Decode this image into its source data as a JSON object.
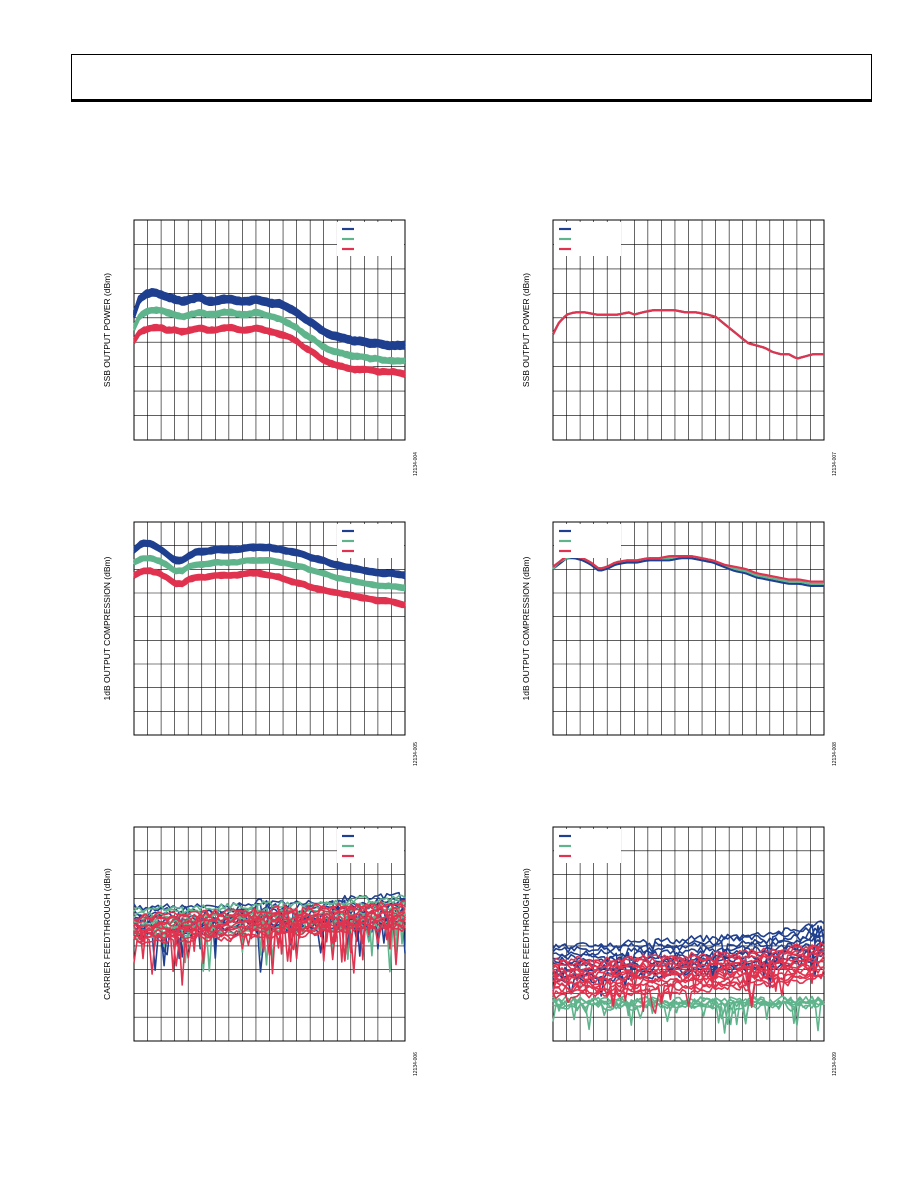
{
  "page": {
    "header_title": ""
  },
  "colors": {
    "blue": "#1f3f8f",
    "green": "#5fb48c",
    "red": "#e0334f",
    "grid": "#000000"
  },
  "chart_data": [
    {
      "id": "chart-1",
      "type": "line",
      "ylabel": "SSB OUTPUT POWER (dBm)",
      "figure_id": "12134-004",
      "grid": true,
      "legend": "top-right",
      "x": [
        0.0,
        0.02,
        0.04,
        0.06,
        0.08,
        0.1,
        0.12,
        0.15,
        0.18,
        0.21,
        0.24,
        0.27,
        0.3,
        0.33,
        0.36,
        0.39,
        0.42,
        0.45,
        0.48,
        0.51,
        0.54,
        0.57,
        0.6,
        0.63,
        0.66,
        0.69,
        0.72,
        0.75,
        0.78,
        0.81,
        0.84,
        0.87,
        0.9,
        0.93,
        0.96,
        1.0
      ],
      "series": [
        {
          "color": "blue",
          "band": 0.03,
          "n": 9,
          "values": [
            0.57,
            0.64,
            0.66,
            0.67,
            0.67,
            0.66,
            0.65,
            0.64,
            0.63,
            0.64,
            0.65,
            0.63,
            0.63,
            0.64,
            0.64,
            0.63,
            0.63,
            0.64,
            0.63,
            0.62,
            0.62,
            0.6,
            0.58,
            0.55,
            0.53,
            0.5,
            0.48,
            0.47,
            0.46,
            0.45,
            0.45,
            0.44,
            0.44,
            0.43,
            0.43,
            0.43
          ]
        },
        {
          "color": "green",
          "band": 0.022,
          "n": 7,
          "values": [
            0.51,
            0.56,
            0.58,
            0.59,
            0.59,
            0.59,
            0.58,
            0.57,
            0.56,
            0.57,
            0.58,
            0.57,
            0.57,
            0.58,
            0.58,
            0.57,
            0.57,
            0.58,
            0.57,
            0.56,
            0.55,
            0.53,
            0.51,
            0.48,
            0.46,
            0.43,
            0.41,
            0.4,
            0.39,
            0.38,
            0.38,
            0.37,
            0.37,
            0.36,
            0.36,
            0.36
          ]
        },
        {
          "color": "red",
          "band": 0.022,
          "n": 7,
          "values": [
            0.45,
            0.49,
            0.5,
            0.51,
            0.51,
            0.51,
            0.5,
            0.5,
            0.49,
            0.5,
            0.51,
            0.5,
            0.5,
            0.51,
            0.51,
            0.5,
            0.5,
            0.51,
            0.5,
            0.49,
            0.48,
            0.47,
            0.45,
            0.42,
            0.4,
            0.37,
            0.35,
            0.34,
            0.33,
            0.32,
            0.32,
            0.32,
            0.31,
            0.31,
            0.31,
            0.3
          ]
        }
      ]
    },
    {
      "id": "chart-2",
      "type": "line",
      "ylabel": "SSB OUTPUT POWER (dBm)",
      "figure_id": "12134-007",
      "grid": true,
      "legend": "top-left",
      "x": [
        0.0,
        0.02,
        0.05,
        0.08,
        0.12,
        0.16,
        0.2,
        0.24,
        0.28,
        0.3,
        0.33,
        0.37,
        0.41,
        0.45,
        0.49,
        0.53,
        0.57,
        0.6,
        0.63,
        0.66,
        0.69,
        0.72,
        0.75,
        0.78,
        0.81,
        0.84,
        0.87,
        0.9,
        0.93,
        0.96,
        1.0
      ],
      "series": [
        {
          "color": "blue",
          "band": 0.0,
          "n": 1,
          "values": [
            0.48,
            0.53,
            0.57,
            0.58,
            0.58,
            0.57,
            0.57,
            0.57,
            0.58,
            0.57,
            0.58,
            0.59,
            0.59,
            0.59,
            0.58,
            0.58,
            0.57,
            0.56,
            0.53,
            0.5,
            0.47,
            0.44,
            0.43,
            0.42,
            0.4,
            0.39,
            0.39,
            0.37,
            0.38,
            0.39,
            0.39
          ]
        },
        {
          "color": "green",
          "band": 0.0,
          "n": 1,
          "values": [
            0.48,
            0.53,
            0.57,
            0.58,
            0.58,
            0.57,
            0.57,
            0.57,
            0.58,
            0.57,
            0.58,
            0.59,
            0.59,
            0.59,
            0.58,
            0.58,
            0.57,
            0.56,
            0.53,
            0.5,
            0.47,
            0.44,
            0.43,
            0.42,
            0.4,
            0.39,
            0.39,
            0.37,
            0.38,
            0.39,
            0.39
          ]
        },
        {
          "color": "red",
          "band": 0.0,
          "n": 1,
          "values": [
            0.48,
            0.53,
            0.57,
            0.58,
            0.58,
            0.57,
            0.57,
            0.57,
            0.58,
            0.57,
            0.58,
            0.59,
            0.59,
            0.59,
            0.58,
            0.58,
            0.57,
            0.56,
            0.53,
            0.5,
            0.47,
            0.44,
            0.43,
            0.42,
            0.4,
            0.39,
            0.39,
            0.37,
            0.38,
            0.39,
            0.39
          ]
        }
      ]
    },
    {
      "id": "chart-3",
      "type": "line",
      "ylabel": "1dB OUTPUT COMPRESSION (dBm)",
      "figure_id": "12134-005",
      "grid": true,
      "legend": "top-right",
      "x": [
        0.0,
        0.03,
        0.06,
        0.09,
        0.12,
        0.15,
        0.18,
        0.2,
        0.23,
        0.26,
        0.3,
        0.34,
        0.38,
        0.42,
        0.46,
        0.5,
        0.54,
        0.58,
        0.62,
        0.66,
        0.7,
        0.74,
        0.78,
        0.82,
        0.86,
        0.9,
        0.94,
        1.0
      ],
      "series": [
        {
          "color": "blue",
          "band": 0.025,
          "n": 8,
          "values": [
            0.87,
            0.9,
            0.9,
            0.88,
            0.85,
            0.82,
            0.82,
            0.84,
            0.86,
            0.86,
            0.87,
            0.87,
            0.87,
            0.88,
            0.88,
            0.88,
            0.87,
            0.86,
            0.85,
            0.83,
            0.82,
            0.8,
            0.79,
            0.78,
            0.77,
            0.76,
            0.76,
            0.75
          ]
        },
        {
          "color": "green",
          "band": 0.02,
          "n": 6,
          "values": [
            0.81,
            0.83,
            0.83,
            0.82,
            0.8,
            0.77,
            0.77,
            0.79,
            0.8,
            0.8,
            0.81,
            0.81,
            0.81,
            0.82,
            0.82,
            0.82,
            0.81,
            0.8,
            0.79,
            0.77,
            0.76,
            0.74,
            0.73,
            0.72,
            0.71,
            0.7,
            0.7,
            0.69
          ]
        },
        {
          "color": "red",
          "band": 0.022,
          "n": 7,
          "values": [
            0.75,
            0.77,
            0.77,
            0.76,
            0.74,
            0.71,
            0.71,
            0.73,
            0.74,
            0.74,
            0.75,
            0.75,
            0.75,
            0.76,
            0.76,
            0.75,
            0.74,
            0.72,
            0.71,
            0.69,
            0.68,
            0.67,
            0.66,
            0.65,
            0.64,
            0.63,
            0.63,
            0.61
          ]
        }
      ]
    },
    {
      "id": "chart-4",
      "type": "line",
      "ylabel": "1dB OUTPUT COMPRESSION (dBm)",
      "figure_id": "12134-008",
      "grid": true,
      "legend": "top-left",
      "x": [
        0.0,
        0.02,
        0.05,
        0.08,
        0.11,
        0.14,
        0.17,
        0.2,
        0.23,
        0.27,
        0.31,
        0.35,
        0.39,
        0.43,
        0.47,
        0.51,
        0.55,
        0.59,
        0.63,
        0.67,
        0.71,
        0.75,
        0.79,
        0.83,
        0.87,
        0.91,
        0.95,
        1.0
      ],
      "series": [
        {
          "color": "blue",
          "band": 0.0,
          "n": 1,
          "values": [
            0.78,
            0.8,
            0.83,
            0.83,
            0.82,
            0.8,
            0.77,
            0.78,
            0.8,
            0.81,
            0.81,
            0.82,
            0.82,
            0.82,
            0.83,
            0.83,
            0.82,
            0.81,
            0.79,
            0.77,
            0.76,
            0.74,
            0.73,
            0.72,
            0.71,
            0.71,
            0.7,
            0.7
          ]
        },
        {
          "color": "green",
          "band": 0.0,
          "n": 1,
          "values": [
            0.78,
            0.81,
            0.83,
            0.84,
            0.83,
            0.81,
            0.78,
            0.79,
            0.81,
            0.82,
            0.82,
            0.83,
            0.83,
            0.83,
            0.84,
            0.84,
            0.83,
            0.82,
            0.8,
            0.78,
            0.77,
            0.75,
            0.74,
            0.73,
            0.72,
            0.72,
            0.71,
            0.71
          ]
        },
        {
          "color": "red",
          "band": 0.0,
          "n": 1,
          "values": [
            0.79,
            0.81,
            0.84,
            0.84,
            0.83,
            0.81,
            0.78,
            0.79,
            0.81,
            0.82,
            0.82,
            0.83,
            0.83,
            0.84,
            0.84,
            0.84,
            0.83,
            0.82,
            0.8,
            0.79,
            0.78,
            0.76,
            0.75,
            0.74,
            0.73,
            0.73,
            0.72,
            0.72
          ]
        }
      ]
    },
    {
      "id": "chart-5",
      "type": "line",
      "ylabel": "CARRIER FEEDTHROUGH (dBm)",
      "figure_id": "12134-006",
      "grid": true,
      "legend": "top-right",
      "x": [
        0.0,
        0.03,
        0.06,
        0.09,
        0.12,
        0.15,
        0.18,
        0.21,
        0.24,
        0.27,
        0.3,
        0.33,
        0.36,
        0.39,
        0.42,
        0.45,
        0.48,
        0.51,
        0.54,
        0.57,
        0.6,
        0.63,
        0.66,
        0.69,
        0.72,
        0.75,
        0.78,
        0.81,
        0.84,
        0.87,
        0.9,
        0.93,
        0.96,
        1.0
      ],
      "series": [
        {
          "color": "blue",
          "band": 0.13,
          "n": 8,
          "values": [
            0.56,
            0.55,
            0.56,
            0.56,
            0.57,
            0.56,
            0.57,
            0.57,
            0.56,
            0.57,
            0.57,
            0.56,
            0.57,
            0.58,
            0.58,
            0.58,
            0.59,
            0.58,
            0.58,
            0.57,
            0.58,
            0.59,
            0.59,
            0.58,
            0.59,
            0.6,
            0.6,
            0.6,
            0.6,
            0.6,
            0.61,
            0.61,
            0.62,
            0.62
          ]
        },
        {
          "color": "green",
          "band": 0.12,
          "n": 7,
          "values": [
            0.55,
            0.55,
            0.55,
            0.56,
            0.56,
            0.56,
            0.56,
            0.56,
            0.56,
            0.56,
            0.56,
            0.57,
            0.57,
            0.57,
            0.57,
            0.58,
            0.58,
            0.58,
            0.58,
            0.58,
            0.58,
            0.58,
            0.59,
            0.59,
            0.59,
            0.59,
            0.59,
            0.6,
            0.6,
            0.6,
            0.6,
            0.6,
            0.61,
            0.61
          ]
        },
        {
          "color": "red",
          "band": 0.12,
          "n": 12,
          "values": [
            0.52,
            0.52,
            0.52,
            0.53,
            0.53,
            0.53,
            0.53,
            0.53,
            0.54,
            0.54,
            0.54,
            0.54,
            0.54,
            0.55,
            0.55,
            0.55,
            0.55,
            0.55,
            0.56,
            0.56,
            0.56,
            0.56,
            0.56,
            0.57,
            0.57,
            0.57,
            0.57,
            0.57,
            0.58,
            0.58,
            0.58,
            0.58,
            0.58,
            0.58
          ]
        }
      ]
    },
    {
      "id": "chart-6",
      "type": "line",
      "ylabel": "CARRIER FEEDTHROUGH (dBm)",
      "figure_id": "12134-009",
      "grid": true,
      "legend": "top-left",
      "x": [
        0.0,
        0.03,
        0.06,
        0.09,
        0.12,
        0.15,
        0.18,
        0.21,
        0.24,
        0.27,
        0.3,
        0.33,
        0.36,
        0.39,
        0.42,
        0.45,
        0.48,
        0.51,
        0.54,
        0.57,
        0.6,
        0.63,
        0.66,
        0.69,
        0.72,
        0.75,
        0.78,
        0.81,
        0.84,
        0.87,
        0.9,
        0.93,
        0.96,
        1.0
      ],
      "series": [
        {
          "color": "blue",
          "band": 0.16,
          "n": 10,
          "values": [
            0.36,
            0.37,
            0.36,
            0.37,
            0.37,
            0.36,
            0.37,
            0.37,
            0.37,
            0.38,
            0.38,
            0.38,
            0.38,
            0.39,
            0.39,
            0.39,
            0.39,
            0.4,
            0.4,
            0.4,
            0.4,
            0.41,
            0.41,
            0.41,
            0.42,
            0.42,
            0.42,
            0.43,
            0.43,
            0.44,
            0.44,
            0.45,
            0.47,
            0.48
          ]
        },
        {
          "color": "green",
          "band": 0.03,
          "n": 6,
          "values": [
            0.18,
            0.17,
            0.18,
            0.18,
            0.17,
            0.18,
            0.18,
            0.17,
            0.18,
            0.18,
            0.17,
            0.18,
            0.18,
            0.18,
            0.17,
            0.18,
            0.18,
            0.17,
            0.18,
            0.18,
            0.18,
            0.17,
            0.18,
            0.18,
            0.18,
            0.18,
            0.18,
            0.17,
            0.18,
            0.18,
            0.18,
            0.18,
            0.18,
            0.18
          ]
        },
        {
          "color": "red",
          "band": 0.16,
          "n": 14,
          "values": [
            0.29,
            0.3,
            0.29,
            0.3,
            0.3,
            0.29,
            0.3,
            0.3,
            0.3,
            0.31,
            0.3,
            0.31,
            0.31,
            0.31,
            0.31,
            0.32,
            0.31,
            0.32,
            0.32,
            0.32,
            0.32,
            0.33,
            0.33,
            0.33,
            0.33,
            0.34,
            0.34,
            0.34,
            0.35,
            0.35,
            0.36,
            0.36,
            0.37,
            0.38
          ]
        }
      ]
    }
  ]
}
